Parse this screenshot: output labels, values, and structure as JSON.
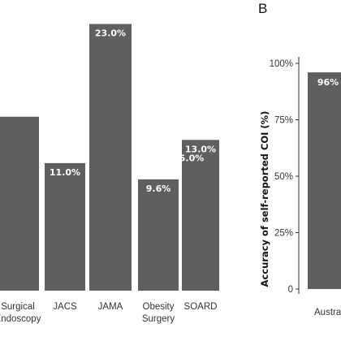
{
  "colors": {
    "bar": "#5f5f5f",
    "text": "#333333",
    "bar_text": "#ffffff"
  },
  "chart_data": [
    {
      "type": "bar",
      "categories": [
        "Surgical Endoscopy",
        "JACS",
        "JAMA",
        "Obesity Surgery",
        "SOARD"
      ],
      "category_lines": [
        [
          "Surgical",
          "Endoscopy"
        ],
        [
          "JACS"
        ],
        [
          "JAMA"
        ],
        [
          "Obesity",
          "Surgery"
        ],
        [
          "SOARD"
        ]
      ],
      "values": [
        15.0,
        11.0,
        23.0,
        9.6,
        13.0
      ],
      "data_labels": [
        "",
        "11.0%",
        "23.0%",
        "9.6%",
        "13.0%"
      ],
      "overlap_label": "5.0%",
      "ylim": [
        0,
        25
      ],
      "grid": false
    },
    {
      "type": "bar",
      "panel_label": "B",
      "categories": [
        "Austra"
      ],
      "values": [
        96
      ],
      "data_labels": [
        "96%"
      ],
      "ylabel": "Accuracy of self-reported COI (%)",
      "yticks": [
        "0",
        "25%",
        "50%",
        "75%",
        "100%"
      ],
      "ytick_values": [
        0,
        25,
        50,
        75,
        100
      ],
      "ylim": [
        0,
        100
      ],
      "grid": false
    }
  ]
}
